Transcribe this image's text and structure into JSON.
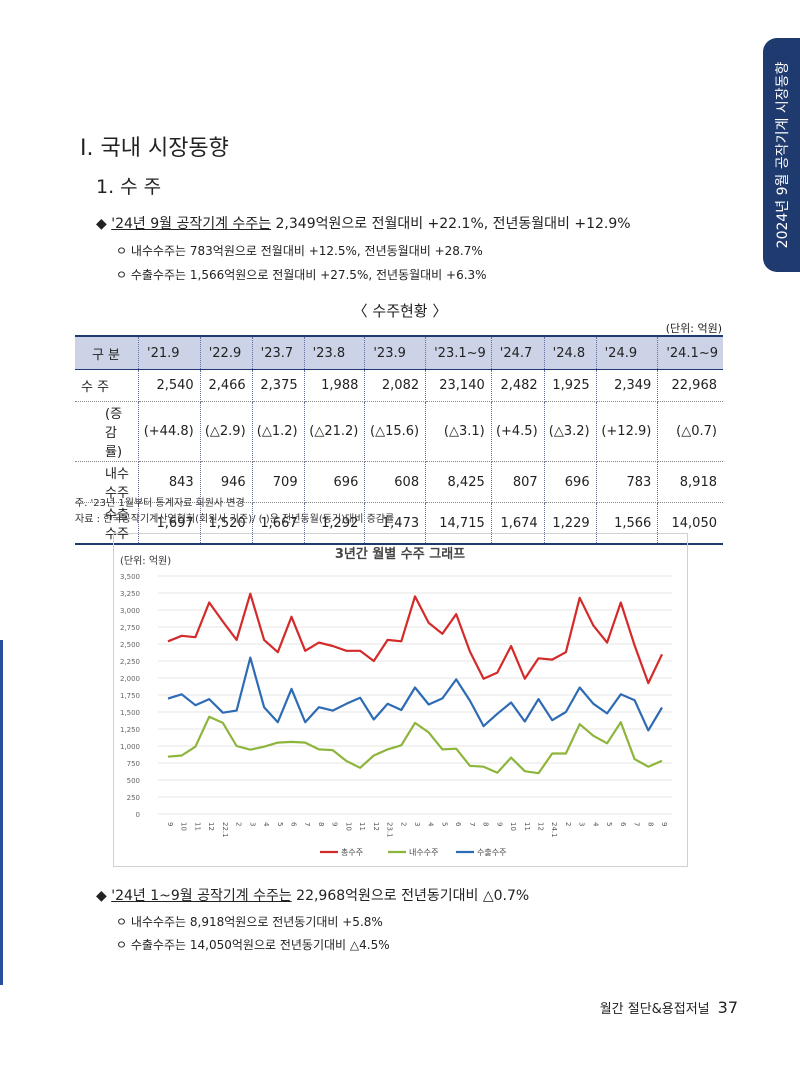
{
  "side_tab": "2024년 9월 공작기계 시장동향",
  "section_title": "Ⅰ. 국내 시장동향",
  "subsection_title": "1. 수 주",
  "bullet1": {
    "marker": "◆",
    "lead": "'24년 9월 공작기계 수주는",
    "rest": " 2,349억원으로 전월대비 +22.1%, 전년동월대비 +12.9%"
  },
  "bullet1_subs": [
    "ㅇ 내수수주는 783억원으로 전월대비 +12.5%, 전년동월대비 +28.7%",
    "ㅇ 수출수주는 1,566억원으로 전월대비 +27.5%, 전년동월대비 +6.3%"
  ],
  "table_caption": "〈 수주현황 〉",
  "unit": "(단위: 억원)",
  "table": {
    "headers": [
      "구 분",
      "'21.9",
      "'22.9",
      "'23.7",
      "'23.8",
      "'23.9",
      "'23.1~9",
      "'24.7",
      "'24.8",
      "'24.9",
      "'24.1~9"
    ],
    "rows": [
      [
        "수   주",
        "2,540",
        "2,466",
        "2,375",
        "1,988",
        "2,082",
        "23,140",
        "2,482",
        "1,925",
        "2,349",
        "22,968"
      ],
      [
        "(증감률)",
        "(+44.8)",
        "(△2.9)",
        "(△1.2)",
        "(△21.2)",
        "(△15.6)",
        "(△3.1)",
        "(+4.5)",
        "(△3.2)",
        "(+12.9)",
        "(△0.7)"
      ],
      [
        "내수수주",
        "843",
        "946",
        "709",
        "696",
        "608",
        "8,425",
        "807",
        "696",
        "783",
        "8,918"
      ],
      [
        "수출수주",
        "1,697",
        "1,520",
        "1,667",
        "1,292",
        "1,473",
        "14,715",
        "1,674",
        "1,229",
        "1,566",
        "14,050"
      ]
    ]
  },
  "notes": [
    "주. '23년 1월부터 통계자료 회원사 변경",
    "자료 : 한국공작기계산업협회(회원사 기준)/ (  )은 전년동월(동기)대비 증감률"
  ],
  "chart_data": {
    "type": "line",
    "title": "3년간 월별 수주 그래프",
    "ylabel": "(단위: 억원)",
    "ylim": [
      0,
      3500
    ],
    "yticks": [
      "0",
      "250",
      "500",
      "750",
      "1,000",
      "1,250",
      "1,500",
      "1,750",
      "2,000",
      "2,250",
      "2,500",
      "2,750",
      "3,000",
      "3,250",
      "3,500"
    ],
    "categories": [
      "9",
      "10",
      "11",
      "12",
      "22.1",
      "2",
      "3",
      "4",
      "5",
      "6",
      "7",
      "8",
      "9",
      "10",
      "11",
      "12",
      "23.1",
      "2",
      "3",
      "4",
      "5",
      "6",
      "7",
      "8",
      "9",
      "10",
      "11",
      "12",
      "24.1",
      "2",
      "3",
      "4",
      "5",
      "6",
      "7",
      "8",
      "9"
    ],
    "series": [
      {
        "name": "총수주",
        "color": "#d42a2a",
        "values": [
          2540,
          2620,
          2600,
          3110,
          2830,
          2560,
          3240,
          2560,
          2380,
          2900,
          2400,
          2520,
          2470,
          2400,
          2400,
          2250,
          2560,
          2540,
          3200,
          2810,
          2650,
          2940,
          2390,
          1990,
          2080,
          2470,
          1990,
          2290,
          2270,
          2380,
          3180,
          2770,
          2520,
          3110,
          2480,
          1925,
          2349
        ]
      },
      {
        "name": "내수수주",
        "color": "#8db53c",
        "values": [
          843,
          860,
          990,
          1430,
          1340,
          1000,
          946,
          990,
          1050,
          1060,
          1050,
          950,
          940,
          780,
          680,
          860,
          950,
          1010,
          1340,
          1200,
          950,
          960,
          709,
          696,
          608,
          830,
          630,
          600,
          890,
          890,
          1320,
          1150,
          1040,
          1350,
          807,
          696,
          783
        ]
      },
      {
        "name": "수출수주",
        "color": "#2e6bb5",
        "values": [
          1697,
          1760,
          1600,
          1690,
          1490,
          1520,
          2300,
          1570,
          1350,
          1840,
          1350,
          1570,
          1520,
          1620,
          1710,
          1390,
          1620,
          1530,
          1860,
          1610,
          1700,
          1980,
          1667,
          1292,
          1473,
          1640,
          1360,
          1690,
          1380,
          1500,
          1860,
          1620,
          1480,
          1760,
          1674,
          1229,
          1566
        ]
      }
    ]
  },
  "bullet2": {
    "marker": "◆",
    "lead": "'24년 1~9월 공작기계 수주는",
    "rest": " 22,968억원으로 전년동기대비 △0.7%"
  },
  "bullet2_subs": [
    "ㅇ 내수수주는 8,918억원으로 전년동기대비 +5.8%",
    "ㅇ 수출수주는 14,050억원으로 전년동기대비 △4.5%"
  ],
  "footer": {
    "journal": "월간 절단&용접저널",
    "page": "37"
  }
}
